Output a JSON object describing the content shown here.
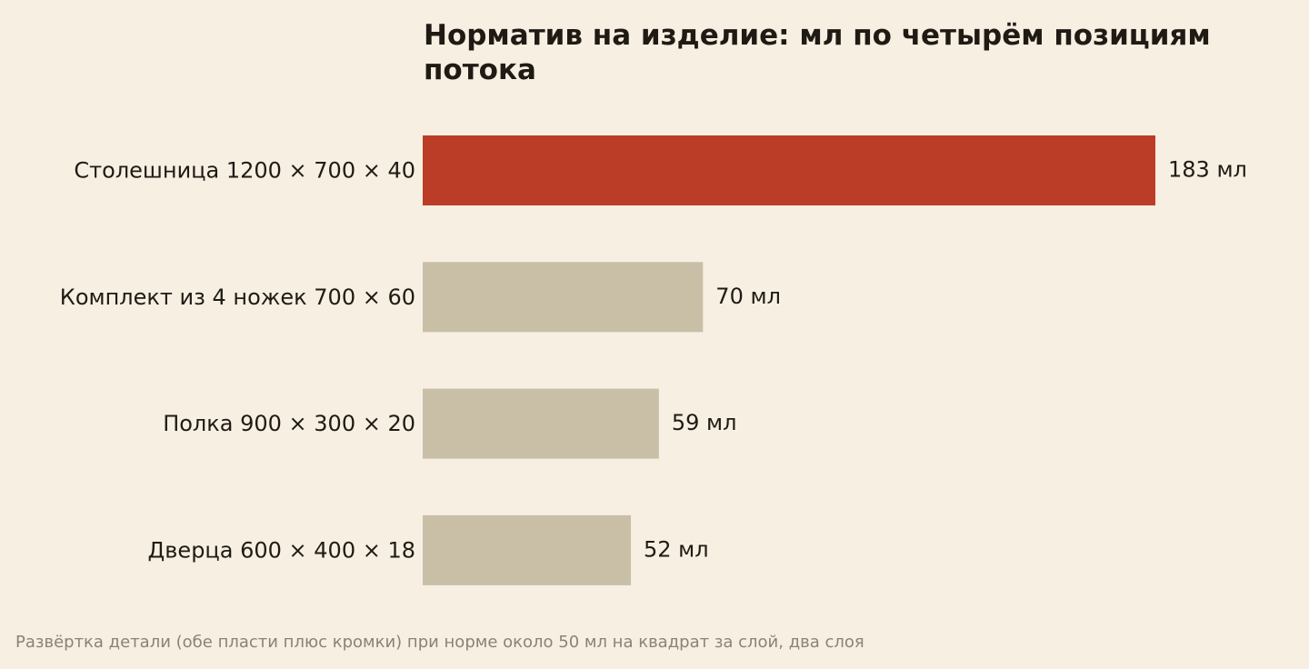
{
  "chart_data": {
    "type": "bar",
    "orientation": "horizontal",
    "title": "Норматив на изделие: мл по четырём позициям потока",
    "xlabel": "",
    "ylabel": "",
    "categories": [
      "Столешница 1200 × 700 × 40",
      "Комплект из 4 ножек 700 × 60",
      "Полка 900 × 300 × 20",
      "Дверца 600 × 400 × 18"
    ],
    "values": [
      183,
      70,
      59,
      52
    ],
    "unit": "мл",
    "value_labels": [
      "183 мл",
      "70 мл",
      "59 мл",
      "52 мл"
    ],
    "highlight_index": 0,
    "xlim": [
      0,
      183
    ],
    "grid": false,
    "colors": {
      "highlight": "#bc3d27",
      "other": "#c9bfa7"
    },
    "footnote": "Развёртка детали (обе пласти плюс кромки) при норме около 50 мл на квадрат за слой, два слоя"
  }
}
